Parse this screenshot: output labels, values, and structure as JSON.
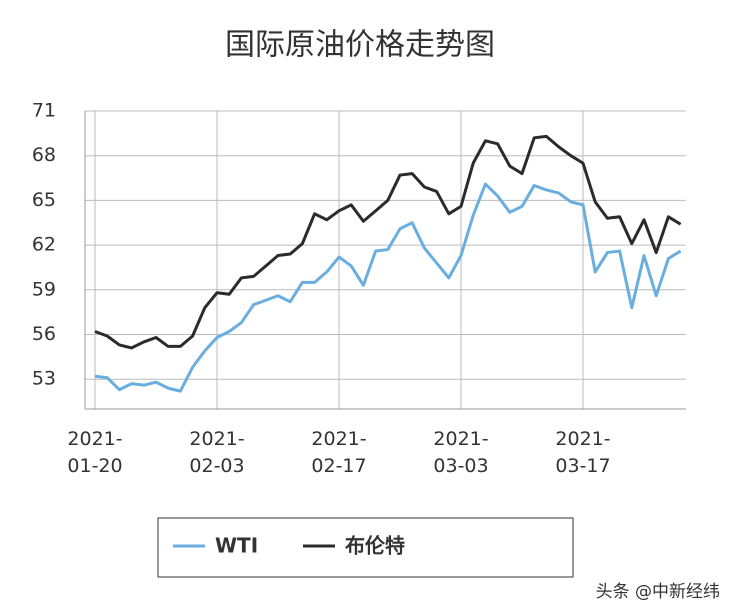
{
  "chart_data": {
    "type": "line",
    "title": "国际原油价格走势图",
    "categories": [
      "2021-\n01-20",
      null,
      null,
      null,
      null,
      null,
      null,
      null,
      null,
      null,
      "2021-\n02-03",
      null,
      null,
      null,
      null,
      null,
      null,
      null,
      null,
      null,
      "2021-\n02-17",
      null,
      null,
      null,
      null,
      null,
      null,
      null,
      null,
      null,
      "2021-\n03-03",
      null,
      null,
      null,
      null,
      null,
      null,
      null,
      null,
      null,
      "2021-\n03-17",
      null,
      null,
      null,
      null,
      null,
      null,
      null,
      null
    ],
    "series": [
      {
        "name": "WTI",
        "color": "#6aaee0",
        "values": [
          53.2,
          53.1,
          52.3,
          52.7,
          52.6,
          52.8,
          52.4,
          52.2,
          53.8,
          54.9,
          55.8,
          56.2,
          56.8,
          58.0,
          58.3,
          58.6,
          58.2,
          59.5,
          59.5,
          60.2,
          61.2,
          60.6,
          59.3,
          61.6,
          61.7,
          63.1,
          63.5,
          61.8,
          60.8,
          59.8,
          61.3,
          64.0,
          66.1,
          65.3,
          64.2,
          64.6,
          66.0,
          65.7,
          65.5,
          64.9,
          64.7,
          60.2,
          61.5,
          61.6,
          57.8,
          61.3,
          58.6,
          61.1,
          61.6
        ]
      },
      {
        "name": "布伦特",
        "color": "#2b2b2b",
        "values": [
          56.2,
          55.9,
          55.3,
          55.1,
          55.5,
          55.8,
          55.2,
          55.2,
          55.9,
          57.8,
          58.8,
          58.7,
          59.8,
          59.9,
          60.6,
          61.3,
          61.4,
          62.1,
          64.1,
          63.7,
          64.3,
          64.7,
          63.6,
          64.3,
          65.0,
          66.7,
          66.8,
          65.9,
          65.6,
          64.1,
          64.6,
          67.5,
          69.0,
          68.8,
          67.3,
          66.8,
          69.2,
          69.3,
          68.6,
          68.0,
          67.5,
          64.9,
          63.8,
          63.9,
          62.1,
          63.7,
          61.5,
          63.9,
          63.4
        ]
      }
    ],
    "ylim": [
      51,
      71
    ],
    "yticks": [
      53,
      56,
      59,
      62,
      65,
      68,
      71
    ],
    "grid": true,
    "watermark": "头条 @中新经纬"
  }
}
